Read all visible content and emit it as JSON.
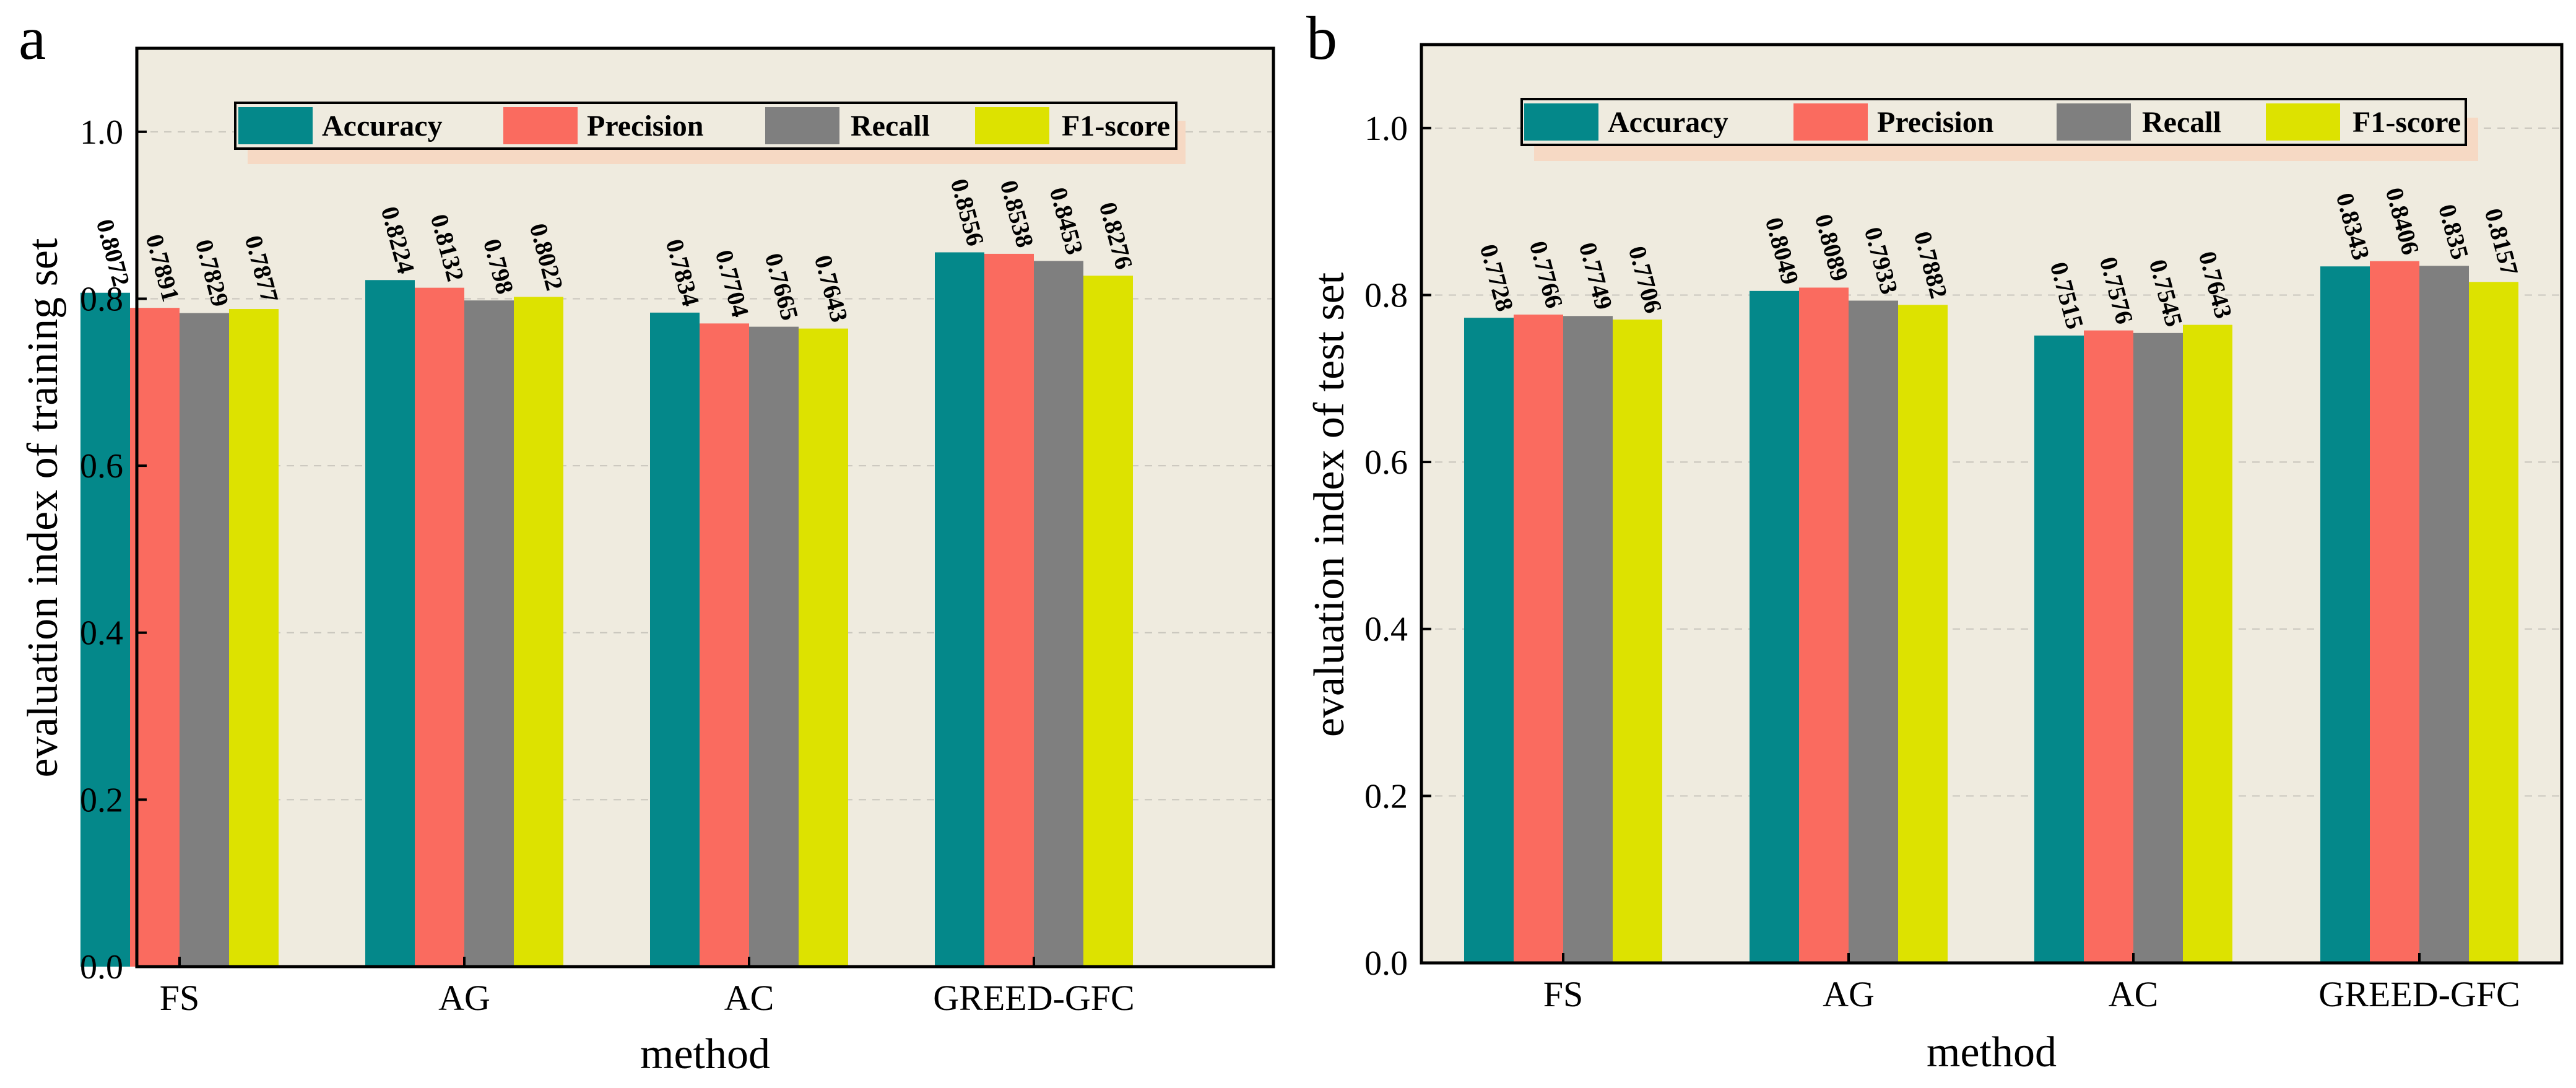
{
  "chart_data": [
    {
      "panel": "a",
      "type": "bar",
      "xlabel": "method",
      "ylabel": "evaluation index of  training set",
      "ylim": [
        0,
        1.1
      ],
      "yticks": [
        "0.0",
        "0.2",
        "0.4",
        "0.6",
        "0.8",
        "1.0"
      ],
      "categories": [
        "FS",
        "AG",
        "AC",
        "GREED-GFC"
      ],
      "legend_position": "top",
      "grid": "horizontal dashed",
      "series": [
        {
          "name": "Accuracy",
          "color": "#04888A",
          "values": [
            0.8072,
            0.8224,
            0.7834,
            0.8556
          ],
          "labels": [
            "0.8072",
            "0.8224",
            "0.7834",
            "0.8556"
          ]
        },
        {
          "name": "Precision",
          "color": "#FA6B5F",
          "values": [
            0.7891,
            0.8132,
            0.7704,
            0.8538
          ],
          "labels": [
            "0.7891",
            "0.8132",
            "0.7704",
            "0.8538"
          ]
        },
        {
          "name": "Recall",
          "color": "#7F7F7F",
          "values": [
            0.7829,
            0.798,
            0.7665,
            0.8453
          ],
          "labels": [
            "0.7829",
            "0.798",
            "0.7665",
            "0.8453"
          ]
        },
        {
          "name": "F1-score",
          "color": "#DDE200",
          "values": [
            0.7877,
            0.8022,
            0.7643,
            0.8276
          ],
          "labels": [
            "0.7877",
            "0.8022",
            "0.7643",
            "0.8276"
          ]
        }
      ]
    },
    {
      "panel": "b",
      "type": "bar",
      "xlabel": "method",
      "ylabel": "evaluation index of  test set",
      "ylim": [
        0,
        1.1
      ],
      "yticks": [
        "0.0",
        "0.2",
        "0.4",
        "0.6",
        "0.8",
        "1.0"
      ],
      "categories": [
        "FS",
        "AG",
        "AC",
        "GREED-GFC"
      ],
      "legend_position": "top",
      "grid": "horizontal dashed",
      "series": [
        {
          "name": "Accuracy",
          "color": "#04888A",
          "values": [
            0.7728,
            0.8049,
            0.7515,
            0.8343
          ],
          "labels": [
            "0.7728",
            "0.8049",
            "0.7515",
            "0.8343"
          ]
        },
        {
          "name": "Precision",
          "color": "#FA6B5F",
          "values": [
            0.7766,
            0.8089,
            0.7576,
            0.8406
          ],
          "labels": [
            "0.7766",
            "0.8089",
            "0.7576",
            "0.8406"
          ]
        },
        {
          "name": "Recall",
          "color": "#7F7F7F",
          "values": [
            0.7749,
            0.7933,
            0.7545,
            0.835
          ],
          "labels": [
            "0.7749",
            "0.7933",
            "0.7545",
            "0.835"
          ]
        },
        {
          "name": "F1-score",
          "color": "#DDE200",
          "values": [
            0.7706,
            0.7882,
            0.7643,
            0.8157
          ],
          "labels": [
            "0.7706",
            "0.7882",
            "0.7643",
            "0.8157"
          ]
        }
      ]
    }
  ],
  "colors": {
    "plot_background": "#EFEBDF",
    "legend_shadow": "#F6D9C4",
    "grid": "#C9C6BD",
    "axis": "#000000"
  }
}
